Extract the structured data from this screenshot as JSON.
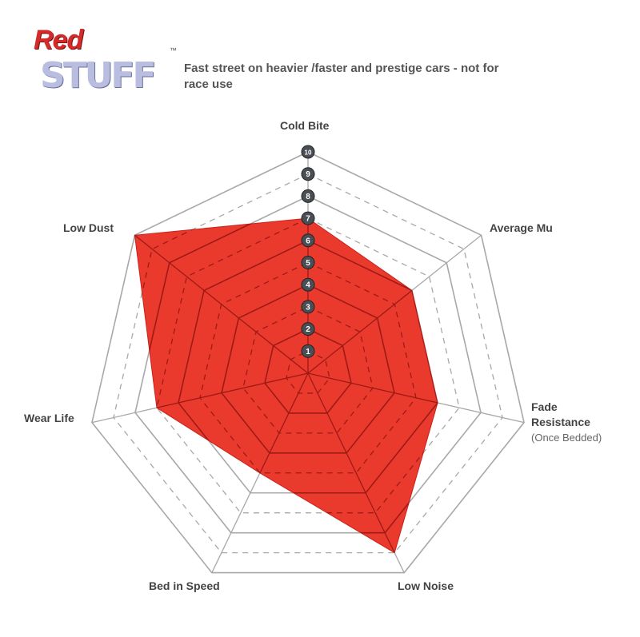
{
  "logo": {
    "word1": "Red",
    "word2": "STUFF",
    "tm": "™"
  },
  "subtitle": "Fast street on heavier /faster and prestige cars - not for race use",
  "chart_data": {
    "type": "radar",
    "axes": [
      "Cold Bite",
      "Average Mu",
      "Fade Resistance",
      "Low Noise",
      "Bed in Speed",
      "Wear Life",
      "Low Dust"
    ],
    "axis_note": {
      "Fade Resistance": "(Once Bedded)"
    },
    "values": [
      7,
      6,
      6,
      9,
      5,
      7,
      10
    ],
    "scale": {
      "min": 0,
      "max": 10,
      "ticks": [
        1,
        2,
        3,
        4,
        5,
        6,
        7,
        8,
        9,
        10
      ]
    },
    "fill_color": "#ea3a2e",
    "grid_color": "#a8a8a8",
    "badge_color": "#4a4e55"
  }
}
